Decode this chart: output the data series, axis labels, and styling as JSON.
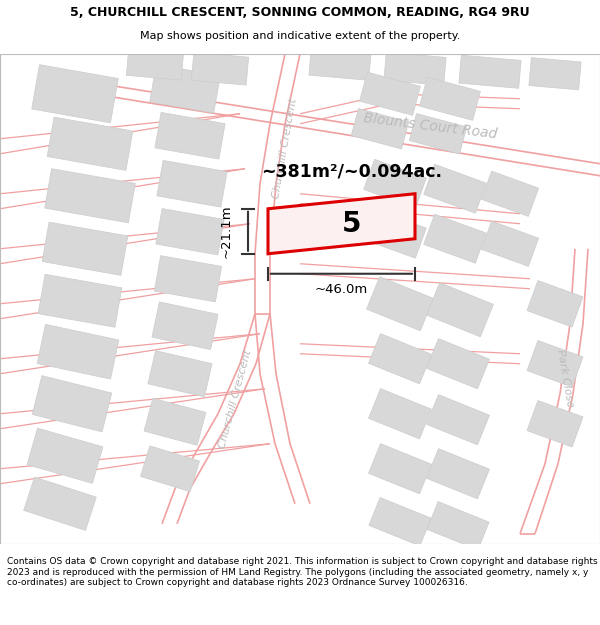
{
  "title_line1": "5, CHURCHILL CRESCENT, SONNING COMMON, READING, RG4 9RU",
  "title_line2": "Map shows position and indicative extent of the property.",
  "area_text": "~381m²/~0.094ac.",
  "property_number": "5",
  "dim_width": "~46.0m",
  "dim_height": "~21.1m",
  "road_label1": "Blounts Court Road",
  "road_label2": "Churchill Crescent",
  "road_label3": "Churchill Crescent",
  "road_label4": "Park Close",
  "footer_text": "Contains OS data © Crown copyright and database right 2021. This information is subject to Crown copyright and database rights 2023 and is reproduced with the permission of HM Land Registry. The polygons (including the associated geometry, namely x, y co-ordinates) are subject to Crown copyright and database rights 2023 Ordnance Survey 100026316.",
  "map_bg": "#ffffff",
  "plot_edge": "#dd0000",
  "road_line_color": "#f0a0a0",
  "building_fill": "#d8d8d8",
  "building_edge": "#cccccc",
  "label_color": "#bbbbbb",
  "title_fontsize": 9.0,
  "subtitle_fontsize": 8.0,
  "footer_fontsize": 6.5
}
